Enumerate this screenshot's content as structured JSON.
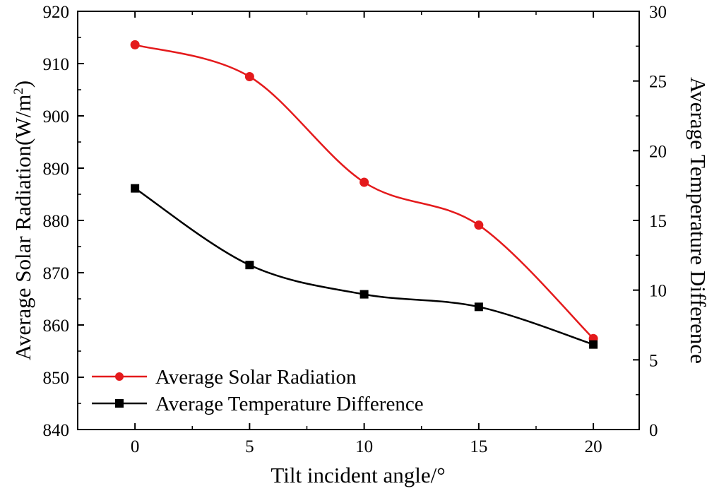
{
  "chart_data": {
    "type": "line",
    "xlabel": "Tilt incident angle/°",
    "ylabel_left": "Average Solar Radiation(W/m",
    "ylabel_left_sup": "2",
    "ylabel_left_close": ")",
    "ylabel_right": "Average Temperature Difference",
    "x_ticks": [
      "0",
      "5",
      "10",
      "15",
      "20"
    ],
    "y_left_ticks": [
      "840",
      "850",
      "860",
      "870",
      "880",
      "890",
      "900",
      "910",
      "920"
    ],
    "y_right_ticks": [
      "0",
      "5",
      "10",
      "15",
      "20",
      "25",
      "30"
    ],
    "xlim": [
      -2.5,
      22
    ],
    "ylim_left": [
      840,
      920
    ],
    "ylim_right": [
      0,
      30
    ],
    "legend_position": "bottom-left",
    "grid": false,
    "series": [
      {
        "name": "Average Solar Radiation",
        "axis": "left",
        "color": "#e41a1c",
        "marker": "circle",
        "x": [
          0,
          5,
          10,
          15,
          20
        ],
        "values": [
          913.6,
          907.5,
          887.3,
          879.1,
          857.4
        ]
      },
      {
        "name": "Average Temperature Difference",
        "axis": "right",
        "color": "#000000",
        "marker": "square",
        "x": [
          0,
          5,
          10,
          15,
          20
        ],
        "values": [
          17.3,
          11.8,
          9.7,
          8.8,
          6.1
        ]
      }
    ]
  }
}
